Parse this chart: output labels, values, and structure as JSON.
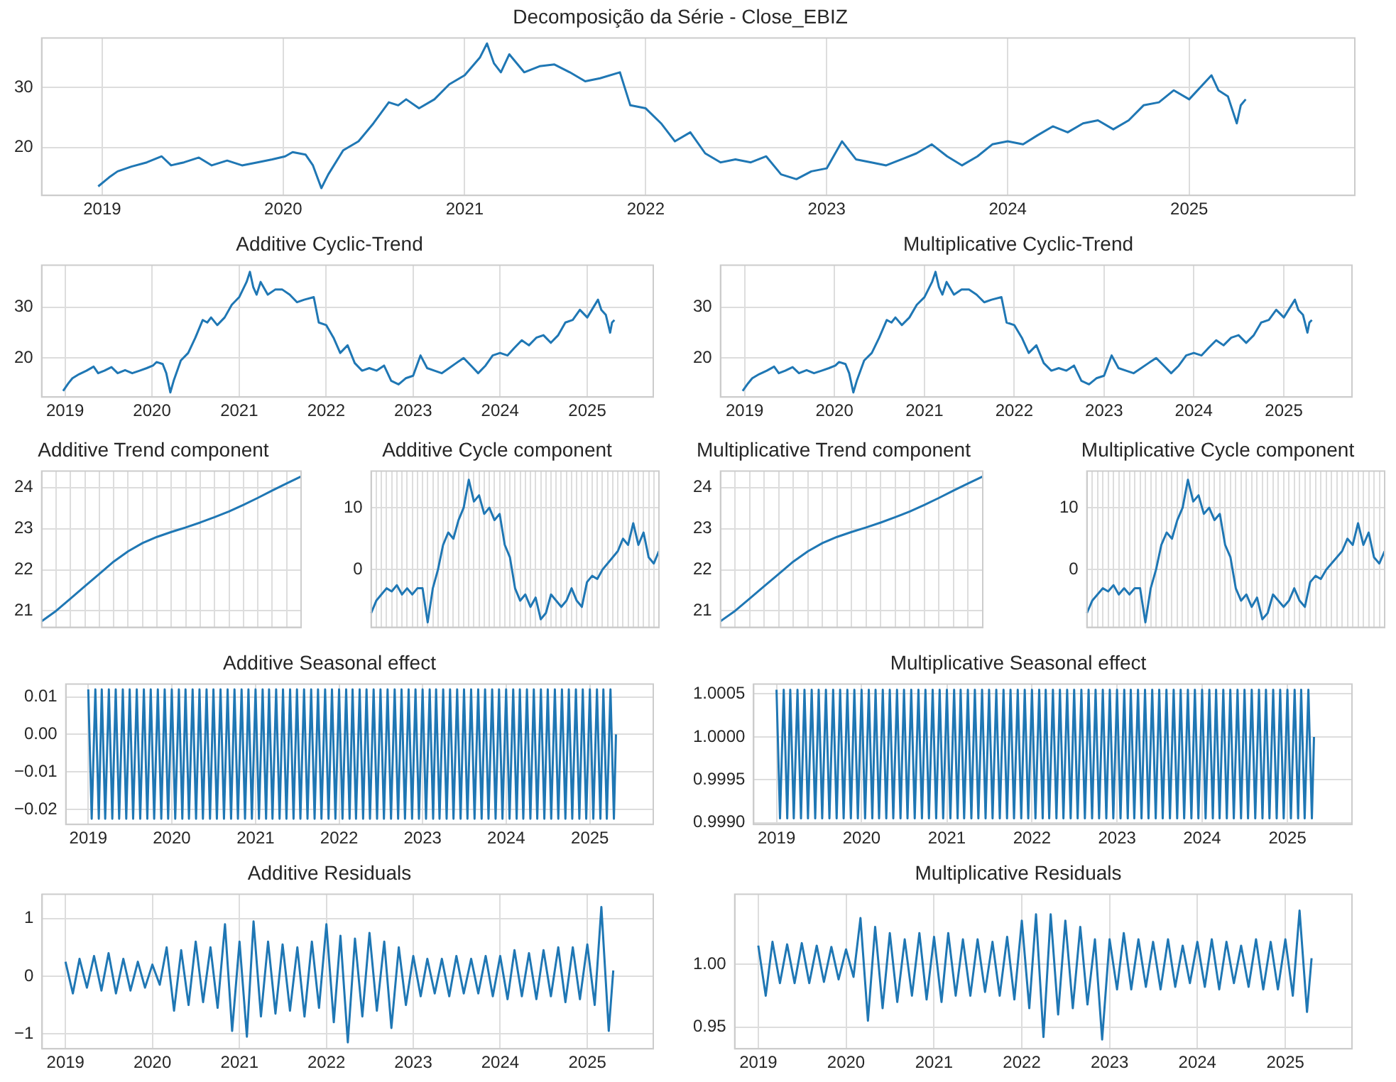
{
  "chart_data": [
    {
      "type": "line",
      "title": "Decomposição da Série - Close_EBIZ",
      "color": "#1f77b4",
      "grid": true,
      "xlim": [
        "2018-09-01",
        "2025-12-01"
      ],
      "xticks": [
        "2019",
        "2020",
        "2021",
        "2022",
        "2023",
        "2024",
        "2025"
      ],
      "ylim": [
        12,
        38.2
      ],
      "yticks": [
        20,
        30
      ],
      "x": [
        "2018-12-24",
        "2019-01-15",
        "2019-02-01",
        "2019-03-01",
        "2019-04-01",
        "2019-05-01",
        "2019-05-20",
        "2019-06-15",
        "2019-07-15",
        "2019-08-10",
        "2019-09-10",
        "2019-10-10",
        "2019-11-10",
        "2019-12-10",
        "2020-01-05",
        "2020-01-20",
        "2020-02-15",
        "2020-03-01",
        "2020-03-18",
        "2020-04-01",
        "2020-05-01",
        "2020-06-01",
        "2020-07-01",
        "2020-08-01",
        "2020-08-20",
        "2020-09-05",
        "2020-10-01",
        "2020-11-01",
        "2020-12-01",
        "2021-01-01",
        "2021-02-01",
        "2021-02-15",
        "2021-03-01",
        "2021-03-15",
        "2021-04-01",
        "2021-05-01",
        "2021-06-01",
        "2021-07-01",
        "2021-08-01",
        "2021-09-01",
        "2021-10-01",
        "2021-11-10",
        "2021-12-01",
        "2022-01-01",
        "2022-02-01",
        "2022-03-01",
        "2022-04-01",
        "2022-05-01",
        "2022-06-01",
        "2022-07-01",
        "2022-08-01",
        "2022-09-01",
        "2022-10-01",
        "2022-11-01",
        "2022-12-01",
        "2023-01-01",
        "2023-02-01",
        "2023-03-01",
        "2023-04-01",
        "2023-05-01",
        "2023-06-01",
        "2023-07-01",
        "2023-08-01",
        "2023-09-01",
        "2023-10-01",
        "2023-11-01",
        "2023-12-01",
        "2024-01-01",
        "2024-02-01",
        "2024-03-01",
        "2024-04-01",
        "2024-05-01",
        "2024-06-01",
        "2024-07-01",
        "2024-08-01",
        "2024-09-01",
        "2024-10-01",
        "2024-11-01",
        "2024-12-01",
        "2025-01-01",
        "2025-02-15",
        "2025-03-01",
        "2025-03-20",
        "2025-04-07",
        "2025-04-15",
        "2025-04-25"
      ],
      "values": [
        13.5,
        15,
        16,
        16.8,
        17.5,
        18.5,
        17,
        17.5,
        18.3,
        17,
        17.8,
        17,
        17.5,
        18,
        18.5,
        19.2,
        18.8,
        17,
        13.2,
        15.5,
        19.5,
        21,
        24,
        27.5,
        27,
        28,
        26.5,
        28,
        30.5,
        32,
        35,
        37.3,
        34,
        32.5,
        35.5,
        32.5,
        33.5,
        33.8,
        32.5,
        31,
        31.5,
        32.5,
        27,
        26.5,
        24,
        21,
        22.5,
        19,
        17.5,
        18,
        17.5,
        18.5,
        15.5,
        14.7,
        16,
        16.5,
        21,
        18,
        17.5,
        17,
        18,
        19,
        20.5,
        18.5,
        17,
        18.5,
        20.5,
        21,
        20.5,
        22,
        23.5,
        22.5,
        24,
        24.5,
        23,
        24.5,
        27,
        27.5,
        29.5,
        28,
        32,
        29.5,
        28.5,
        24,
        27,
        28
      ]
    },
    {
      "type": "line",
      "title": "Additive Cyclic-Trend",
      "color": "#1f77b4",
      "grid": true,
      "xlim": [
        "2018-09-25",
        "2025-10-05"
      ],
      "xticks": [
        "2019",
        "2020",
        "2021",
        "2022",
        "2023",
        "2024",
        "2025"
      ],
      "ylim": [
        12.3,
        38.3
      ],
      "yticks": [
        20,
        30
      ],
      "x": [
        "2018-12-24",
        "2019-01-15",
        "2019-02-01",
        "2019-03-01",
        "2019-04-01",
        "2019-05-01",
        "2019-05-20",
        "2019-06-15",
        "2019-07-15",
        "2019-08-10",
        "2019-09-10",
        "2019-10-10",
        "2019-11-10",
        "2019-12-10",
        "2020-01-05",
        "2020-01-20",
        "2020-02-15",
        "2020-03-01",
        "2020-03-18",
        "2020-04-01",
        "2020-05-01",
        "2020-06-01",
        "2020-07-01",
        "2020-08-01",
        "2020-08-20",
        "2020-09-05",
        "2020-10-01",
        "2020-11-01",
        "2020-12-01",
        "2021-01-01",
        "2021-02-01",
        "2021-02-15",
        "2021-03-01",
        "2021-03-15",
        "2021-04-01",
        "2021-05-01",
        "2021-06-01",
        "2021-07-01",
        "2021-08-01",
        "2021-09-01",
        "2021-10-01",
        "2021-11-10",
        "2021-12-01",
        "2022-01-01",
        "2022-02-01",
        "2022-03-01",
        "2022-04-01",
        "2022-05-01",
        "2022-06-01",
        "2022-07-01",
        "2022-08-01",
        "2022-09-01",
        "2022-10-01",
        "2022-11-01",
        "2022-12-01",
        "2023-01-01",
        "2023-02-01",
        "2023-03-01",
        "2023-04-01",
        "2023-05-01",
        "2023-06-01",
        "2023-07-01",
        "2023-08-01",
        "2023-09-01",
        "2023-10-01",
        "2023-11-01",
        "2023-12-01",
        "2024-01-01",
        "2024-02-01",
        "2024-03-01",
        "2024-04-01",
        "2024-05-01",
        "2024-06-01",
        "2024-07-01",
        "2024-08-01",
        "2024-09-01",
        "2024-10-01",
        "2024-11-01",
        "2024-12-01",
        "2025-01-01",
        "2025-02-15",
        "2025-03-01",
        "2025-03-20",
        "2025-04-07",
        "2025-04-15",
        "2025-04-25"
      ],
      "values": [
        13.5,
        15,
        16,
        16.8,
        17.5,
        18.3,
        17,
        17.5,
        18.2,
        17,
        17.6,
        17,
        17.5,
        18,
        18.5,
        19.2,
        18.8,
        17,
        13.2,
        15.5,
        19.5,
        21,
        24,
        27.5,
        27,
        28,
        26.5,
        28,
        30.5,
        32,
        35,
        37,
        34,
        32.5,
        35,
        32.5,
        33.5,
        33.5,
        32.5,
        31,
        31.5,
        32,
        27,
        26.5,
        24,
        21,
        22.5,
        19,
        17.5,
        18,
        17.5,
        18.5,
        15.5,
        14.8,
        16,
        16.5,
        20.5,
        18,
        17.5,
        17,
        18,
        19,
        20,
        18.5,
        17,
        18.5,
        20.5,
        21,
        20.5,
        22,
        23.5,
        22.5,
        24,
        24.5,
        23,
        24.5,
        27,
        27.5,
        29.5,
        28,
        31.5,
        29.5,
        28.5,
        25,
        27,
        27.5
      ]
    },
    {
      "type": "line",
      "title": "Multiplicative Cyclic-Trend",
      "color": "#1f77b4",
      "grid": true,
      "xlim": [
        "2018-09-25",
        "2025-10-05"
      ],
      "xticks": [
        "2019",
        "2020",
        "2021",
        "2022",
        "2023",
        "2024",
        "2025"
      ],
      "ylim": [
        12.3,
        38.3
      ],
      "yticks": [
        20,
        30
      ],
      "x": [
        "2018-12-24",
        "2019-01-15",
        "2019-02-01",
        "2019-03-01",
        "2019-04-01",
        "2019-05-01",
        "2019-05-20",
        "2019-06-15",
        "2019-07-15",
        "2019-08-10",
        "2019-09-10",
        "2019-10-10",
        "2019-11-10",
        "2019-12-10",
        "2020-01-05",
        "2020-01-20",
        "2020-02-15",
        "2020-03-01",
        "2020-03-18",
        "2020-04-01",
        "2020-05-01",
        "2020-06-01",
        "2020-07-01",
        "2020-08-01",
        "2020-08-20",
        "2020-09-05",
        "2020-10-01",
        "2020-11-01",
        "2020-12-01",
        "2021-01-01",
        "2021-02-01",
        "2021-02-15",
        "2021-03-01",
        "2021-03-15",
        "2021-04-01",
        "2021-05-01",
        "2021-06-01",
        "2021-07-01",
        "2021-08-01",
        "2021-09-01",
        "2021-10-01",
        "2021-11-10",
        "2021-12-01",
        "2022-01-01",
        "2022-02-01",
        "2022-03-01",
        "2022-04-01",
        "2022-05-01",
        "2022-06-01",
        "2022-07-01",
        "2022-08-01",
        "2022-09-01",
        "2022-10-01",
        "2022-11-01",
        "2022-12-01",
        "2023-01-01",
        "2023-02-01",
        "2023-03-01",
        "2023-04-01",
        "2023-05-01",
        "2023-06-01",
        "2023-07-01",
        "2023-08-01",
        "2023-09-01",
        "2023-10-01",
        "2023-11-01",
        "2023-12-01",
        "2024-01-01",
        "2024-02-01",
        "2024-03-01",
        "2024-04-01",
        "2024-05-01",
        "2024-06-01",
        "2024-07-01",
        "2024-08-01",
        "2024-09-01",
        "2024-10-01",
        "2024-11-01",
        "2024-12-01",
        "2025-01-01",
        "2025-02-15",
        "2025-03-01",
        "2025-03-20",
        "2025-04-07",
        "2025-04-15",
        "2025-04-25"
      ],
      "values": [
        13.5,
        15,
        16,
        16.8,
        17.5,
        18.3,
        17,
        17.5,
        18.2,
        17,
        17.6,
        17,
        17.5,
        18,
        18.5,
        19.2,
        18.8,
        17,
        13.2,
        15.5,
        19.5,
        21,
        24,
        27.5,
        27,
        28,
        26.5,
        28,
        30.5,
        32,
        35,
        37,
        34,
        32.5,
        35,
        32.5,
        33.5,
        33.5,
        32.5,
        31,
        31.5,
        32,
        27,
        26.5,
        24,
        21,
        22.5,
        19,
        17.5,
        18,
        17.5,
        18.5,
        15.5,
        14.8,
        16,
        16.5,
        20.5,
        18,
        17.5,
        17,
        18,
        19,
        20,
        18.5,
        17,
        18.5,
        20.5,
        21,
        20.5,
        22,
        23.5,
        22.5,
        24,
        24.5,
        23,
        24.5,
        27,
        27.5,
        29.5,
        28,
        31.5,
        29.5,
        28.5,
        25,
        27,
        27.5
      ]
    },
    {
      "type": "line",
      "title": "Additive Trend component",
      "color": "#1f77b4",
      "grid": true,
      "tick_labels": "y",
      "ylim": [
        20.6,
        24.4
      ],
      "yticks": [
        21,
        22,
        23,
        24
      ],
      "categories": [
        null,
        null,
        null,
        null,
        null,
        null,
        null,
        null,
        null,
        null,
        null,
        null,
        null,
        null,
        null,
        null,
        null,
        null,
        null
      ],
      "values": [
        20.75,
        21.0,
        21.3,
        21.6,
        21.9,
        22.2,
        22.45,
        22.65,
        22.8,
        22.92,
        23.03,
        23.15,
        23.28,
        23.42,
        23.58,
        23.75,
        23.93,
        24.1,
        24.27
      ]
    },
    {
      "type": "line",
      "title": "Additive Cycle component",
      "color": "#1f77b4",
      "grid": true,
      "tick_labels": "y",
      "ylim": [
        -9.3,
        15.9
      ],
      "yticks": [
        0,
        10
      ],
      "categories": [
        null,
        null,
        null,
        null,
        null,
        null,
        null,
        null,
        null,
        null,
        null,
        null,
        null,
        null,
        null,
        null,
        null,
        null,
        null,
        null,
        null,
        null,
        null,
        null,
        null,
        null,
        null,
        null,
        null,
        null,
        null,
        null,
        null,
        null,
        null,
        null,
        null,
        null,
        null,
        null,
        null,
        null,
        null,
        null,
        null,
        null,
        null,
        null,
        null,
        null,
        null,
        null,
        null,
        null,
        null,
        null,
        null
      ],
      "values": [
        -7,
        -5,
        -4,
        -3,
        -3.5,
        -2.5,
        -4,
        -3,
        -4,
        -3,
        -3,
        -8.5,
        -3,
        0,
        4,
        6,
        5,
        8,
        10,
        14.5,
        11,
        12,
        9,
        10,
        8,
        9,
        4,
        2,
        -3,
        -5,
        -4,
        -6,
        -4.5,
        -8,
        -7,
        -4,
        -5,
        -6,
        -5,
        -3,
        -5,
        -6,
        -2,
        -1,
        -1.5,
        0,
        1,
        2,
        3,
        5,
        4,
        7.5,
        4,
        6,
        2,
        1,
        3
      ]
    },
    {
      "type": "line",
      "title": "Multiplicative Trend component",
      "color": "#1f77b4",
      "grid": true,
      "tick_labels": "y",
      "ylim": [
        20.6,
        24.4
      ],
      "yticks": [
        21,
        22,
        23,
        24
      ],
      "categories": [
        null,
        null,
        null,
        null,
        null,
        null,
        null,
        null,
        null,
        null,
        null,
        null,
        null,
        null,
        null,
        null,
        null,
        null,
        null
      ],
      "values": [
        20.75,
        21.0,
        21.3,
        21.6,
        21.9,
        22.2,
        22.45,
        22.65,
        22.8,
        22.92,
        23.03,
        23.15,
        23.28,
        23.42,
        23.58,
        23.75,
        23.93,
        24.1,
        24.27
      ]
    },
    {
      "type": "line",
      "title": "Multiplicative Cycle component",
      "color": "#1f77b4",
      "grid": true,
      "tick_labels": "y",
      "ylim": [
        -9.3,
        15.9
      ],
      "yticks": [
        0,
        10
      ],
      "categories": [
        null,
        null,
        null,
        null,
        null,
        null,
        null,
        null,
        null,
        null,
        null,
        null,
        null,
        null,
        null,
        null,
        null,
        null,
        null,
        null,
        null,
        null,
        null,
        null,
        null,
        null,
        null,
        null,
        null,
        null,
        null,
        null,
        null,
        null,
        null,
        null,
        null,
        null,
        null,
        null,
        null,
        null,
        null,
        null,
        null,
        null,
        null,
        null,
        null,
        null,
        null,
        null,
        null,
        null,
        null,
        null,
        null
      ],
      "values": [
        -7,
        -5,
        -4,
        -3,
        -3.5,
        -2.5,
        -4,
        -3,
        -4,
        -3,
        -3,
        -8.5,
        -3,
        0,
        4,
        6,
        5,
        8,
        10,
        14.5,
        11,
        12,
        9,
        10,
        8,
        9,
        4,
        2,
        -3,
        -5,
        -4,
        -6,
        -4.5,
        -8,
        -7,
        -4,
        -5,
        -6,
        -5,
        -3,
        -5,
        -6,
        -2,
        -1,
        -1.5,
        0,
        1,
        2,
        3,
        5,
        4,
        7.5,
        4,
        6,
        2,
        1,
        3
      ]
    },
    {
      "type": "line",
      "title": "Additive Seasonal effect",
      "color": "#1f77b4",
      "grid": true,
      "xlim": [
        "2018-09-25",
        "2025-10-05"
      ],
      "xticks": [
        "2019",
        "2020",
        "2021",
        "2022",
        "2023",
        "2024",
        "2025"
      ],
      "ylim": [
        -0.024,
        0.0134
      ],
      "yticks": [
        {
          "value": -0.02,
          "label": "−0.02"
        },
        {
          "value": -0.01,
          "label": "−0.01"
        },
        {
          "value": 0,
          "label": "0.00"
        },
        0.01
      ],
      "x": [
        "2019-01-01",
        "2019-01-16",
        "2019-02-01",
        "2019-02-16",
        "2019-03-01",
        "2019-03-16",
        "2019-04-01",
        "2019-04-16",
        "2019-05-01",
        "2019-05-16",
        "2019-06-01",
        "2019-06-16",
        "2019-07-01",
        "2019-07-16",
        "2019-08-01",
        "2019-08-16",
        "2019-09-01",
        "2019-09-16",
        "2019-10-01",
        "2019-10-16",
        "2019-11-01",
        "2019-11-16",
        "2019-12-01",
        "2019-12-16",
        "2020-01-01",
        "2020-01-16",
        "2020-02-01",
        "2020-02-16",
        "2020-03-01",
        "2020-03-16",
        "2020-04-01",
        "2020-04-16",
        "2020-05-01",
        "2020-05-16",
        "2020-06-01",
        "2020-06-16",
        "2020-07-01",
        "2020-07-16",
        "2020-08-01",
        "2020-08-16",
        "2020-09-01",
        "2020-09-16",
        "2020-10-01",
        "2020-10-16",
        "2020-11-01",
        "2020-11-16",
        "2020-12-01",
        "2020-12-16",
        "2021-01-01",
        "2021-01-16",
        "2021-02-01",
        "2021-02-16",
        "2021-03-01",
        "2021-03-16",
        "2021-04-01",
        "2021-04-16",
        "2021-05-01",
        "2021-05-16",
        "2021-06-01",
        "2021-06-16",
        "2021-07-01",
        "2021-07-16",
        "2021-08-01",
        "2021-08-16",
        "2021-09-01",
        "2021-09-16",
        "2021-10-01",
        "2021-10-16",
        "2021-11-01",
        "2021-11-16",
        "2021-12-01",
        "2021-12-16",
        "2022-01-01",
        "2022-01-16",
        "2022-02-01",
        "2022-02-16",
        "2022-03-01",
        "2022-03-16",
        "2022-04-01",
        "2022-04-16",
        "2022-05-01",
        "2022-05-16",
        "2022-06-01",
        "2022-06-16",
        "2022-07-01",
        "2022-07-16",
        "2022-08-01",
        "2022-08-16",
        "2022-09-01",
        "2022-09-16",
        "2022-10-01",
        "2022-10-16",
        "2022-11-01",
        "2022-11-16",
        "2022-12-01",
        "2022-12-16",
        "2023-01-01",
        "2023-01-16",
        "2023-02-01",
        "2023-02-16",
        "2023-03-01",
        "2023-03-16",
        "2023-04-01",
        "2023-04-16",
        "2023-05-01",
        "2023-05-16",
        "2023-06-01",
        "2023-06-16",
        "2023-07-01",
        "2023-07-16",
        "2023-08-01",
        "2023-08-16",
        "2023-09-01",
        "2023-09-16",
        "2023-10-01",
        "2023-10-16",
        "2023-11-01",
        "2023-11-16",
        "2023-12-01",
        "2023-12-16",
        "2024-01-01",
        "2024-01-16",
        "2024-02-01",
        "2024-02-16",
        "2024-03-01",
        "2024-03-16",
        "2024-04-01",
        "2024-04-16",
        "2024-05-01",
        "2024-05-16",
        "2024-06-01",
        "2024-06-16",
        "2024-07-01",
        "2024-07-16",
        "2024-08-01",
        "2024-08-16",
        "2024-09-01",
        "2024-09-16",
        "2024-10-01",
        "2024-10-16",
        "2024-11-01",
        "2024-11-16",
        "2024-12-01",
        "2024-12-16",
        "2025-01-01",
        "2025-01-16",
        "2025-02-01",
        "2025-02-16",
        "2025-03-01",
        "2025-03-16",
        "2025-04-01",
        "2025-04-16",
        "2025-04-25"
      ],
      "values": [
        0.012,
        -0.0225,
        0.012,
        -0.0225,
        0.012,
        -0.0225,
        0.012,
        -0.0225,
        0.012,
        -0.0225,
        0.012,
        -0.0225,
        0.012,
        -0.0225,
        0.012,
        -0.0225,
        0.012,
        -0.0225,
        0.012,
        -0.0225,
        0.012,
        -0.0225,
        0.012,
        -0.0225,
        0.012,
        -0.0225,
        0.012,
        -0.0225,
        0.012,
        -0.0225,
        0.012,
        -0.0225,
        0.012,
        -0.0225,
        0.012,
        -0.0225,
        0.012,
        -0.0225,
        0.012,
        -0.0225,
        0.012,
        -0.0225,
        0.012,
        -0.0225,
        0.012,
        -0.0225,
        0.012,
        -0.0225,
        0.012,
        -0.0225,
        0.012,
        -0.0225,
        0.012,
        -0.0225,
        0.012,
        -0.0225,
        0.012,
        -0.0225,
        0.012,
        -0.0225,
        0.012,
        -0.0225,
        0.012,
        -0.0225,
        0.012,
        -0.0225,
        0.012,
        -0.0225,
        0.012,
        -0.0225,
        0.012,
        -0.0225,
        0.012,
        -0.0225,
        0.012,
        -0.0225,
        0.012,
        -0.0225,
        0.012,
        -0.0225,
        0.012,
        -0.0225,
        0.012,
        -0.0225,
        0.012,
        -0.0225,
        0.012,
        -0.0225,
        0.012,
        -0.0225,
        0.012,
        -0.0225,
        0.012,
        -0.0225,
        0.012,
        -0.0225,
        0.012,
        -0.0225,
        0.012,
        -0.0225,
        0.012,
        -0.0225,
        0.012,
        -0.0225,
        0.012,
        -0.0225,
        0.012,
        -0.0225,
        0.012,
        -0.0225,
        0.012,
        -0.0225,
        0.012,
        -0.0225,
        0.012,
        -0.0225,
        0.012,
        -0.0225,
        0.012,
        -0.0225,
        0.012,
        -0.0225,
        0.012,
        -0.0225,
        0.012,
        -0.0225,
        0.012,
        -0.0225,
        0.012,
        -0.0225,
        0.012,
        -0.0225,
        0.012,
        -0.0225,
        0.012,
        -0.0225,
        0.012,
        -0.0225,
        0.012,
        -0.0225,
        0.012,
        -0.0225,
        0.012,
        -0.0225,
        0.012,
        -0.0225,
        0.012,
        -0.0225,
        0.012,
        -0.0225,
        0.012,
        -0.0225,
        0
      ]
    },
    {
      "type": "line",
      "title": "Multiplicative Seasonal effect",
      "color": "#1f77b4",
      "grid": true,
      "xlim": [
        "2018-09-25",
        "2025-10-05"
      ],
      "xticks": [
        "2019",
        "2020",
        "2021",
        "2022",
        "2023",
        "2024",
        "2025"
      ],
      "ylim": [
        0.99898,
        1.000615
      ],
      "yticks": [
        {
          "value": 0.999,
          "label": "0.9990"
        },
        0.9995,
        {
          "value": 1,
          "label": "1.0000"
        },
        1.0005
      ],
      "x": [
        "2019-01-01",
        "2019-01-16",
        "2019-02-01",
        "2019-02-16",
        "2019-03-01",
        "2019-03-16",
        "2019-04-01",
        "2019-04-16",
        "2019-05-01",
        "2019-05-16",
        "2019-06-01",
        "2019-06-16",
        "2019-07-01",
        "2019-07-16",
        "2019-08-01",
        "2019-08-16",
        "2019-09-01",
        "2019-09-16",
        "2019-10-01",
        "2019-10-16",
        "2019-11-01",
        "2019-11-16",
        "2019-12-01",
        "2019-12-16",
        "2020-01-01",
        "2020-01-16",
        "2020-02-01",
        "2020-02-16",
        "2020-03-01",
        "2020-03-16",
        "2020-04-01",
        "2020-04-16",
        "2020-05-01",
        "2020-05-16",
        "2020-06-01",
        "2020-06-16",
        "2020-07-01",
        "2020-07-16",
        "2020-08-01",
        "2020-08-16",
        "2020-09-01",
        "2020-09-16",
        "2020-10-01",
        "2020-10-16",
        "2020-11-01",
        "2020-11-16",
        "2020-12-01",
        "2020-12-16",
        "2021-01-01",
        "2021-01-16",
        "2021-02-01",
        "2021-02-16",
        "2021-03-01",
        "2021-03-16",
        "2021-04-01",
        "2021-04-16",
        "2021-05-01",
        "2021-05-16",
        "2021-06-01",
        "2021-06-16",
        "2021-07-01",
        "2021-07-16",
        "2021-08-01",
        "2021-08-16",
        "2021-09-01",
        "2021-09-16",
        "2021-10-01",
        "2021-10-16",
        "2021-11-01",
        "2021-11-16",
        "2021-12-01",
        "2021-12-16",
        "2022-01-01",
        "2022-01-16",
        "2022-02-01",
        "2022-02-16",
        "2022-03-01",
        "2022-03-16",
        "2022-04-01",
        "2022-04-16",
        "2022-05-01",
        "2022-05-16",
        "2022-06-01",
        "2022-06-16",
        "2022-07-01",
        "2022-07-16",
        "2022-08-01",
        "2022-08-16",
        "2022-09-01",
        "2022-09-16",
        "2022-10-01",
        "2022-10-16",
        "2022-11-01",
        "2022-11-16",
        "2022-12-01",
        "2022-12-16",
        "2023-01-01",
        "2023-01-16",
        "2023-02-01",
        "2023-02-16",
        "2023-03-01",
        "2023-03-16",
        "2023-04-01",
        "2023-04-16",
        "2023-05-01",
        "2023-05-16",
        "2023-06-01",
        "2023-06-16",
        "2023-07-01",
        "2023-07-16",
        "2023-08-01",
        "2023-08-16",
        "2023-09-01",
        "2023-09-16",
        "2023-10-01",
        "2023-10-16",
        "2023-11-01",
        "2023-11-16",
        "2023-12-01",
        "2023-12-16",
        "2024-01-01",
        "2024-01-16",
        "2024-02-01",
        "2024-02-16",
        "2024-03-01",
        "2024-03-16",
        "2024-04-01",
        "2024-04-16",
        "2024-05-01",
        "2024-05-16",
        "2024-06-01",
        "2024-06-16",
        "2024-07-01",
        "2024-07-16",
        "2024-08-01",
        "2024-08-16",
        "2024-09-01",
        "2024-09-16",
        "2024-10-01",
        "2024-10-16",
        "2024-11-01",
        "2024-11-16",
        "2024-12-01",
        "2024-12-16",
        "2025-01-01",
        "2025-01-16",
        "2025-02-01",
        "2025-02-16",
        "2025-03-01",
        "2025-03-16",
        "2025-04-01",
        "2025-04-16",
        "2025-04-25"
      ],
      "values": [
        1.00055,
        0.99905,
        1.00055,
        0.99905,
        1.00055,
        0.99905,
        1.00055,
        0.99905,
        1.00055,
        0.99905,
        1.00055,
        0.99905,
        1.00055,
        0.99905,
        1.00055,
        0.99905,
        1.00055,
        0.99905,
        1.00055,
        0.99905,
        1.00055,
        0.99905,
        1.00055,
        0.99905,
        1.00055,
        0.99905,
        1.00055,
        0.99905,
        1.00055,
        0.99905,
        1.00055,
        0.99905,
        1.00055,
        0.99905,
        1.00055,
        0.99905,
        1.00055,
        0.99905,
        1.00055,
        0.99905,
        1.00055,
        0.99905,
        1.00055,
        0.99905,
        1.00055,
        0.99905,
        1.00055,
        0.99905,
        1.00055,
        0.99905,
        1.00055,
        0.99905,
        1.00055,
        0.99905,
        1.00055,
        0.99905,
        1.00055,
        0.99905,
        1.00055,
        0.99905,
        1.00055,
        0.99905,
        1.00055,
        0.99905,
        1.00055,
        0.99905,
        1.00055,
        0.99905,
        1.00055,
        0.99905,
        1.00055,
        0.99905,
        1.00055,
        0.99905,
        1.00055,
        0.99905,
        1.00055,
        0.99905,
        1.00055,
        0.99905,
        1.00055,
        0.99905,
        1.00055,
        0.99905,
        1.00055,
        0.99905,
        1.00055,
        0.99905,
        1.00055,
        0.99905,
        1.00055,
        0.99905,
        1.00055,
        0.99905,
        1.00055,
        0.99905,
        1.00055,
        0.99905,
        1.00055,
        0.99905,
        1.00055,
        0.99905,
        1.00055,
        0.99905,
        1.00055,
        0.99905,
        1.00055,
        0.99905,
        1.00055,
        0.99905,
        1.00055,
        0.99905,
        1.00055,
        0.99905,
        1.00055,
        0.99905,
        1.00055,
        0.99905,
        1.00055,
        0.99905,
        1.00055,
        0.99905,
        1.00055,
        0.99905,
        1.00055,
        0.99905,
        1.00055,
        0.99905,
        1.00055,
        0.99905,
        1.00055,
        0.99905,
        1.00055,
        0.99905,
        1.00055,
        0.99905,
        1.00055,
        0.99905,
        1.00055,
        0.99905,
        1.00055,
        0.99905,
        1.00055,
        0.99905,
        1.00055,
        0.99905,
        1.00055,
        0.99905,
        1.00055,
        0.99905,
        1.00055,
        0.99905,
        1
      ]
    },
    {
      "type": "line",
      "title": "Additive Residuals",
      "color": "#1f77b4",
      "grid": true,
      "xlim": [
        "2018-09-25",
        "2025-10-05"
      ],
      "xticks": [
        "2019",
        "2020",
        "2021",
        "2022",
        "2023",
        "2024",
        "2025"
      ],
      "ylim": [
        -1.26,
        1.42
      ],
      "yticks": [
        {
          "value": -1,
          "label": "−1"
        },
        0,
        1
      ],
      "x": [
        "2019-01-01",
        "2019-02-01",
        "2019-03-01",
        "2019-04-01",
        "2019-05-01",
        "2019-06-01",
        "2019-07-01",
        "2019-08-01",
        "2019-09-01",
        "2019-10-01",
        "2019-11-01",
        "2019-12-01",
        "2020-01-01",
        "2020-02-01",
        "2020-03-01",
        "2020-04-01",
        "2020-05-01",
        "2020-06-01",
        "2020-07-01",
        "2020-08-01",
        "2020-09-01",
        "2020-10-01",
        "2020-11-01",
        "2020-12-01",
        "2021-01-01",
        "2021-02-01",
        "2021-03-01",
        "2021-04-01",
        "2021-05-01",
        "2021-06-01",
        "2021-07-01",
        "2021-08-01",
        "2021-09-01",
        "2021-10-01",
        "2021-11-01",
        "2021-12-01",
        "2022-01-01",
        "2022-02-01",
        "2022-03-01",
        "2022-04-01",
        "2022-05-01",
        "2022-06-01",
        "2022-07-01",
        "2022-08-01",
        "2022-09-01",
        "2022-10-01",
        "2022-11-01",
        "2022-12-01",
        "2023-01-01",
        "2023-02-01",
        "2023-03-01",
        "2023-04-01",
        "2023-05-01",
        "2023-06-01",
        "2023-07-01",
        "2023-08-01",
        "2023-09-01",
        "2023-10-01",
        "2023-11-01",
        "2023-12-01",
        "2024-01-01",
        "2024-02-01",
        "2024-03-01",
        "2024-04-01",
        "2024-05-01",
        "2024-06-01",
        "2024-07-01",
        "2024-08-01",
        "2024-09-01",
        "2024-10-01",
        "2024-11-01",
        "2024-12-01",
        "2025-01-01",
        "2025-02-01",
        "2025-03-01",
        "2025-04-01",
        "2025-04-20"
      ],
      "values": [
        0.25,
        -0.3,
        0.3,
        -0.2,
        0.35,
        -0.25,
        0.4,
        -0.3,
        0.3,
        -0.25,
        0.25,
        -0.2,
        0.2,
        -0.15,
        0.5,
        -0.6,
        0.45,
        -0.5,
        0.6,
        -0.45,
        0.5,
        -0.55,
        0.9,
        -0.95,
        0.6,
        -1.05,
        0.95,
        -0.7,
        0.6,
        -0.65,
        0.55,
        -0.6,
        0.5,
        -0.7,
        0.6,
        -0.55,
        0.9,
        -0.8,
        0.7,
        -1.15,
        0.65,
        -0.7,
        0.75,
        -0.6,
        0.6,
        -0.9,
        0.5,
        -0.5,
        0.35,
        -0.35,
        0.3,
        -0.3,
        0.3,
        -0.35,
        0.35,
        -0.3,
        0.3,
        -0.3,
        0.35,
        -0.35,
        0.35,
        -0.4,
        0.45,
        -0.35,
        0.4,
        -0.4,
        0.45,
        -0.35,
        0.5,
        -0.45,
        0.5,
        -0.4,
        0.55,
        -0.5,
        1.2,
        -0.95,
        0.1
      ]
    },
    {
      "type": "line",
      "title": "Multiplicative Residuals",
      "color": "#1f77b4",
      "grid": true,
      "xlim": [
        "2018-09-25",
        "2025-10-05"
      ],
      "xticks": [
        "2019",
        "2020",
        "2021",
        "2022",
        "2023",
        "2024",
        "2025"
      ],
      "ylim": [
        0.9326,
        1.056
      ],
      "yticks": [
        {
          "value": 0.95,
          "label": "0.95"
        },
        {
          "value": 1,
          "label": "1.00"
        }
      ],
      "x": [
        "2019-01-01",
        "2019-02-01",
        "2019-03-01",
        "2019-04-01",
        "2019-05-01",
        "2019-06-01",
        "2019-07-01",
        "2019-08-01",
        "2019-09-01",
        "2019-10-01",
        "2019-11-01",
        "2019-12-01",
        "2020-01-01",
        "2020-02-01",
        "2020-03-01",
        "2020-04-01",
        "2020-05-01",
        "2020-06-01",
        "2020-07-01",
        "2020-08-01",
        "2020-09-01",
        "2020-10-01",
        "2020-11-01",
        "2020-12-01",
        "2021-01-01",
        "2021-02-01",
        "2021-03-01",
        "2021-04-01",
        "2021-05-01",
        "2021-06-01",
        "2021-07-01",
        "2021-08-01",
        "2021-09-01",
        "2021-10-01",
        "2021-11-01",
        "2021-12-01",
        "2022-01-01",
        "2022-02-01",
        "2022-03-01",
        "2022-04-01",
        "2022-05-01",
        "2022-06-01",
        "2022-07-01",
        "2022-08-01",
        "2022-09-01",
        "2022-10-01",
        "2022-11-01",
        "2022-12-01",
        "2023-01-01",
        "2023-02-01",
        "2023-03-01",
        "2023-04-01",
        "2023-05-01",
        "2023-06-01",
        "2023-07-01",
        "2023-08-01",
        "2023-09-01",
        "2023-10-01",
        "2023-11-01",
        "2023-12-01",
        "2024-01-01",
        "2024-02-01",
        "2024-03-01",
        "2024-04-01",
        "2024-05-01",
        "2024-06-01",
        "2024-07-01",
        "2024-08-01",
        "2024-09-01",
        "2024-10-01",
        "2024-11-01",
        "2024-12-01",
        "2025-01-01",
        "2025-02-01",
        "2025-03-01",
        "2025-04-01",
        "2025-04-20"
      ],
      "values": [
        1.015,
        0.975,
        1.018,
        0.985,
        1.016,
        0.985,
        1.017,
        0.985,
        1.015,
        0.986,
        1.014,
        0.988,
        1.012,
        0.99,
        1.037,
        0.955,
        1.03,
        0.965,
        1.025,
        0.97,
        1.02,
        0.975,
        1.025,
        0.972,
        1.022,
        0.97,
        1.025,
        0.975,
        1.02,
        0.975,
        1.02,
        0.978,
        1.018,
        0.975,
        1.022,
        0.972,
        1.035,
        0.965,
        1.04,
        0.942,
        1.04,
        0.96,
        1.035,
        0.965,
        1.03,
        0.968,
        1.02,
        0.94,
        1.02,
        0.98,
        1.025,
        0.98,
        1.02,
        0.982,
        1.018,
        0.98,
        1.02,
        0.982,
        1.015,
        0.985,
        1.018,
        0.982,
        1.02,
        0.98,
        1.018,
        0.985,
        1.015,
        0.982,
        1.02,
        0.98,
        1.018,
        0.98,
        1.02,
        0.975,
        1.043,
        0.962,
        1.005
      ]
    }
  ]
}
